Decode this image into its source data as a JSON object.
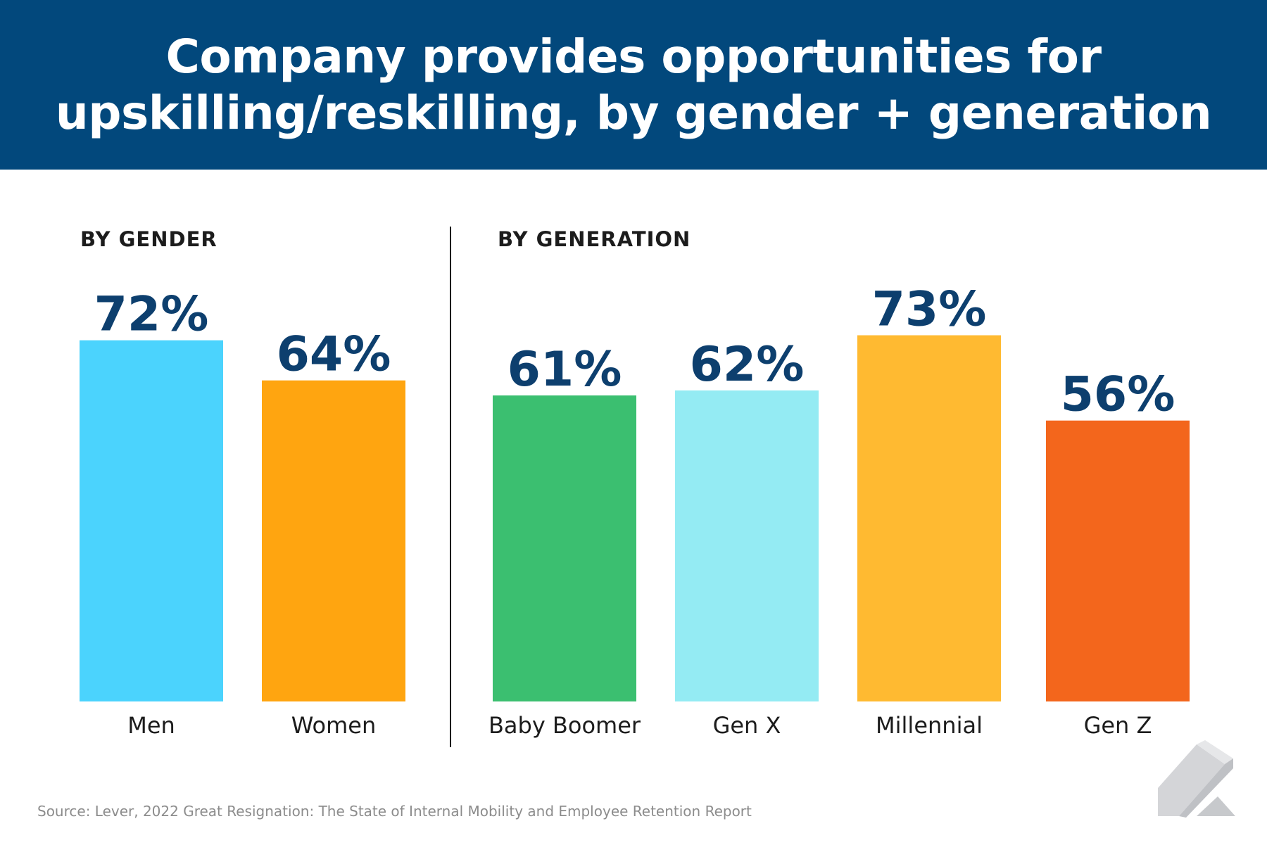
{
  "header": {
    "title_line1": "Company provides opportunities for",
    "title_line2": "upskilling/reskilling, by gender + generation"
  },
  "sections": {
    "gender_label": "BY GENDER",
    "generation_label": "BY GENERATION"
  },
  "chart_data": [
    {
      "type": "bar",
      "title": "BY GENDER",
      "categories": [
        "Men",
        "Women"
      ],
      "values": [
        72,
        64
      ],
      "value_labels": [
        "72%",
        "64%"
      ],
      "colors": [
        "#4bd3fd",
        "#ffa510"
      ],
      "ylim": [
        0,
        100
      ],
      "grid": false
    },
    {
      "type": "bar",
      "title": "BY GENERATION",
      "categories": [
        "Baby Boomer",
        "Gen X",
        "Millennial",
        "Gen Z"
      ],
      "values": [
        61,
        62,
        73,
        56
      ],
      "value_labels": [
        "61%",
        "62%",
        "73%",
        "56%"
      ],
      "colors": [
        "#3bbf70",
        "#94ebf3",
        "#ffba31",
        "#f3661c"
      ],
      "ylim": [
        0,
        100
      ],
      "grid": false
    }
  ],
  "colors": {
    "header_bg": "#02487c",
    "value_label": "#0d3f6e",
    "category_label": "#1c1c1c"
  },
  "footer": {
    "source": "Source: Lever, 2022 Great Resignation: The State of Internal Mobility and Employee Retention Report",
    "logo_icon": "lever-logo-icon"
  }
}
